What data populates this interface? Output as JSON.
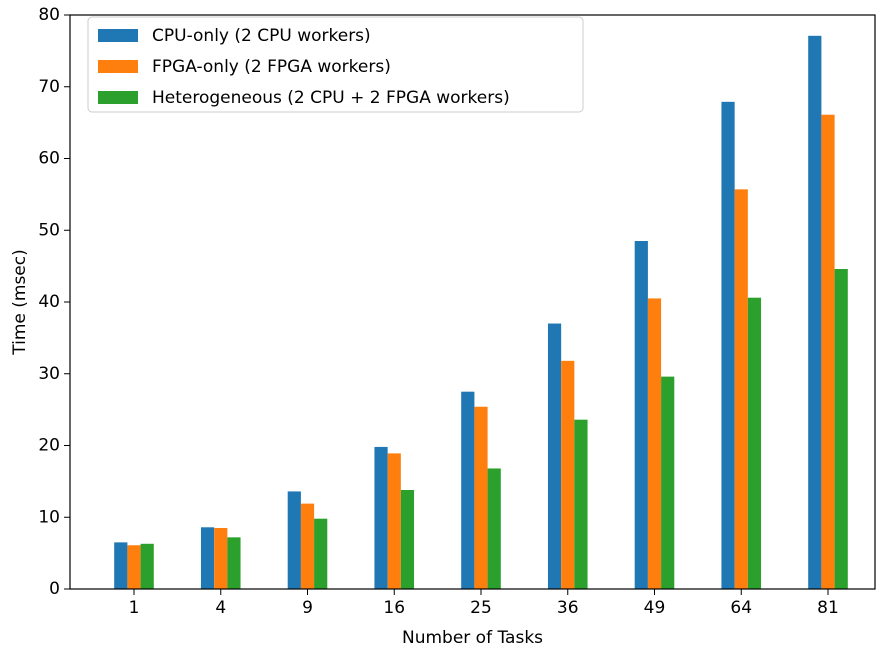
{
  "chart_data": {
    "type": "bar",
    "x_label": "Number of Tasks",
    "y_label": "Time (msec)",
    "categories": [
      "1",
      "4",
      "9",
      "16",
      "25",
      "36",
      "49",
      "64",
      "81"
    ],
    "series": [
      {
        "name": "CPU-only (2 CPU workers)",
        "color": "#1f77b4",
        "values": [
          6.5,
          8.6,
          13.6,
          19.8,
          27.5,
          37.0,
          48.5,
          67.9,
          77.1
        ]
      },
      {
        "name": "FPGA-only (2 FPGA workers)",
        "color": "#ff7f0e",
        "values": [
          6.1,
          8.5,
          11.9,
          18.9,
          25.4,
          31.8,
          40.5,
          55.7,
          66.1
        ]
      },
      {
        "name": "Heterogeneous (2 CPU + 2 FPGA workers)",
        "color": "#2ca02c",
        "values": [
          6.3,
          7.2,
          9.8,
          13.8,
          16.8,
          23.6,
          29.6,
          40.6,
          44.6
        ]
      }
    ],
    "ylim": [
      0,
      80
    ],
    "yticks": [
      0,
      10,
      20,
      30,
      40,
      50,
      60,
      70,
      80
    ],
    "legend": "upper left",
    "grid": false
  }
}
